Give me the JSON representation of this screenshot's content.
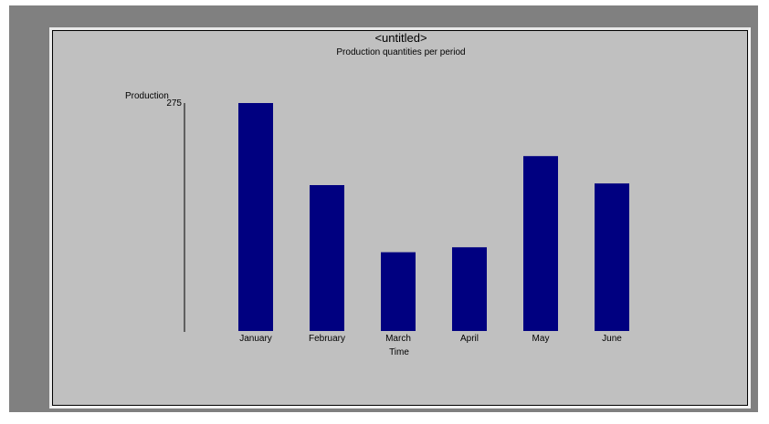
{
  "window": {
    "background": "#808080",
    "panel_background": "#c0c0c0"
  },
  "chart_data": {
    "type": "bar",
    "title": "<untitled>",
    "subtitle": "Production quantities per period",
    "ylabel": "Production",
    "xlabel": "Time",
    "y_tick_label": "275",
    "ylim": [
      0,
      275
    ],
    "categories": [
      "January",
      "February",
      "March",
      "April",
      "May",
      "June"
    ],
    "values": [
      275,
      176,
      95,
      101,
      211,
      178
    ],
    "bar_color": "#000080",
    "grid": false,
    "legend": "none"
  }
}
